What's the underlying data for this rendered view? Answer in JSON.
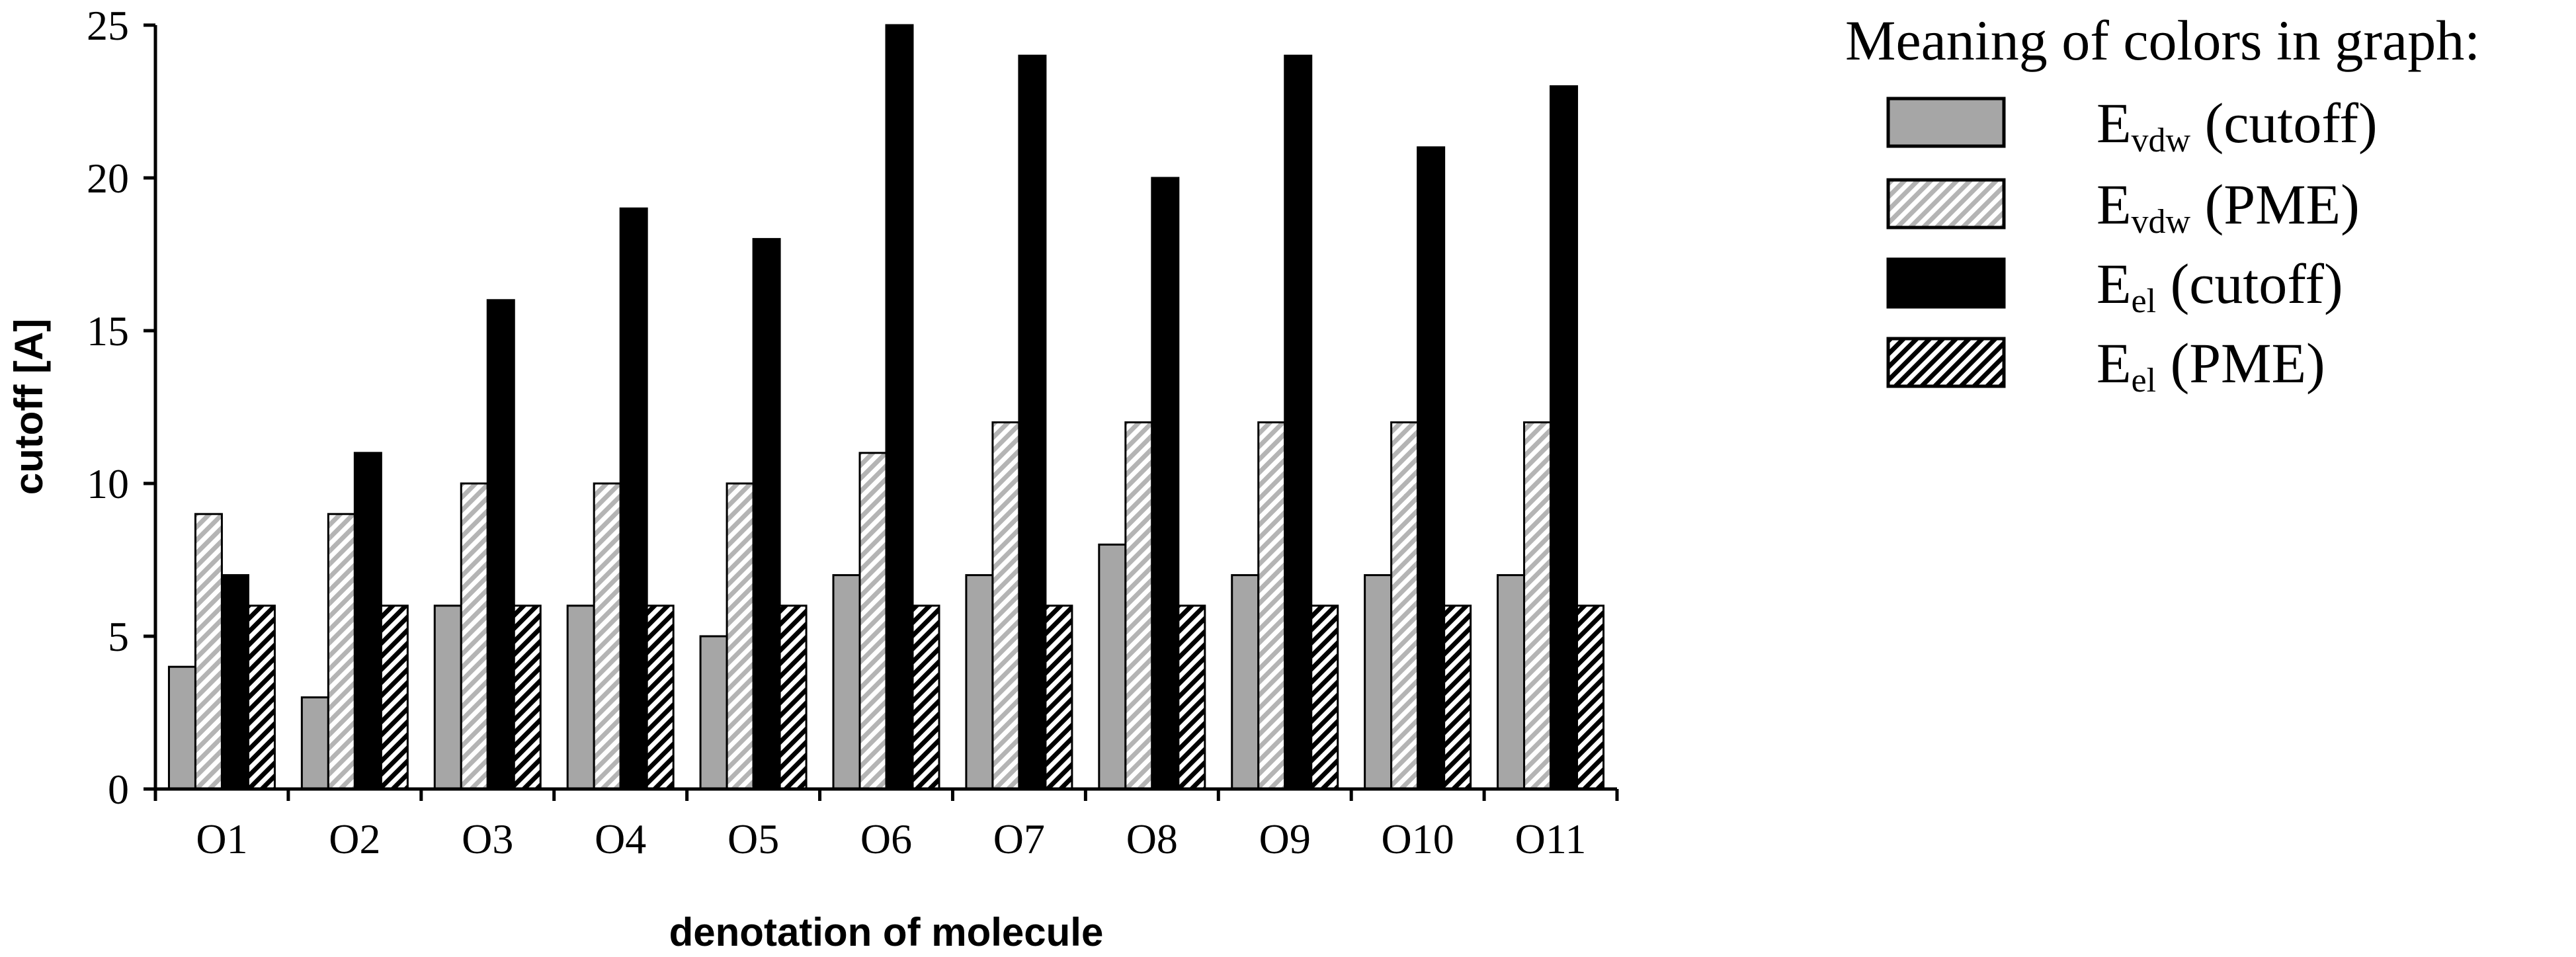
{
  "chart_data": {
    "type": "bar",
    "ylabel": "cutoff [A]",
    "xlabel": "denotation of molecule",
    "ylim": [
      0,
      25
    ],
    "yticks": [
      "0",
      "5",
      "10",
      "15",
      "20",
      "25"
    ],
    "categories": [
      "O1",
      "O2",
      "O3",
      "O4",
      "O5",
      "O6",
      "O7",
      "O8",
      "O9",
      "O10",
      "O11"
    ],
    "legend_title": "Meaning of colors in graph:",
    "legend_position": "right",
    "series": [
      {
        "name": "Evdw (cutoff)",
        "legend_main": "E",
        "legend_sub": "vdw",
        "legend_tail": " (cutoff)",
        "fill": "solid-gray",
        "color": "#a6a6a6",
        "values": [
          4,
          3,
          6,
          6,
          5,
          7,
          7,
          8,
          7,
          7,
          7
        ]
      },
      {
        "name": "Evdw (PME)",
        "legend_main": "E",
        "legend_sub": "vdw",
        "legend_tail": " (PME)",
        "fill": "light-hatch",
        "color": "#c8c8c8",
        "values": [
          9,
          9,
          10,
          10,
          10,
          11,
          12,
          12,
          12,
          12,
          12
        ]
      },
      {
        "name": "Eel (cutoff)",
        "legend_main": "E",
        "legend_sub": "el",
        "legend_tail": " (cutoff)",
        "fill": "solid-black",
        "color": "#000000",
        "values": [
          7,
          11,
          16,
          19,
          18,
          25,
          24,
          20,
          24,
          21,
          23
        ]
      },
      {
        "name": "Eel (PME)",
        "legend_main": "E",
        "legend_sub": "el",
        "legend_tail": " (PME)",
        "fill": "dark-hatch",
        "color": "#000000",
        "values": [
          6,
          6,
          6,
          6,
          6,
          6,
          6,
          6,
          6,
          6,
          6
        ]
      }
    ]
  }
}
